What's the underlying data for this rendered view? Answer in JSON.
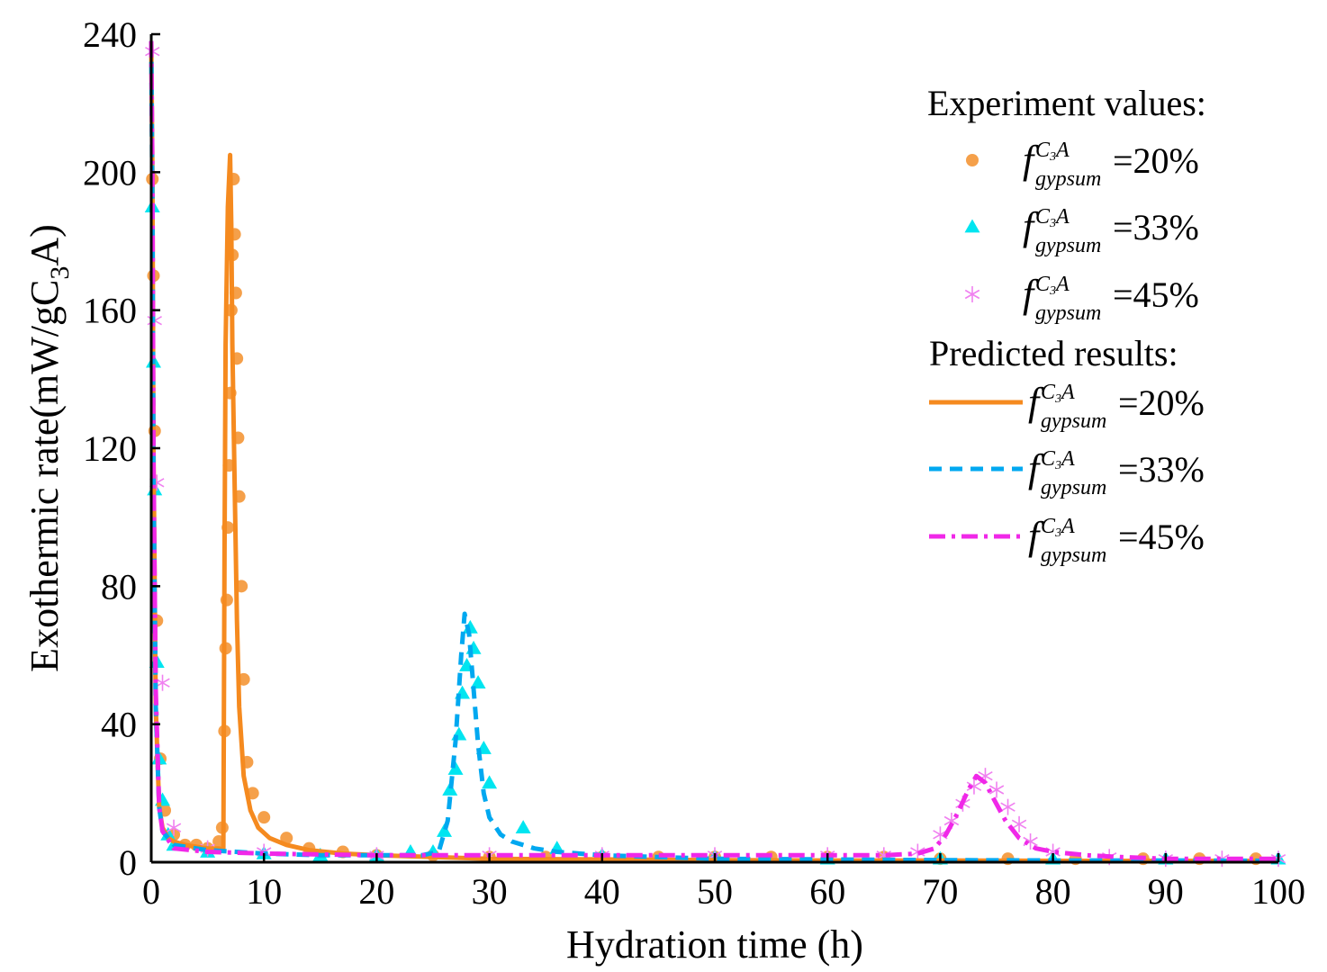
{
  "chart_data": {
    "type": "line",
    "xlabel": "Hydration time (h)",
    "ylabel": "Exothermic rate(mW/gC",
    "ylabel_sub": "3",
    "ylabel_end": "A)",
    "xlim": [
      0,
      100
    ],
    "ylim": [
      0,
      240
    ],
    "x_ticks": [
      0,
      10,
      20,
      30,
      40,
      50,
      60,
      70,
      80,
      90,
      100
    ],
    "y_ticks": [
      0,
      40,
      80,
      120,
      160,
      200,
      240
    ],
    "legend": {
      "experiment_title": "Experiment values:",
      "predicted_title": "Predicted results:",
      "symbol_main": "f",
      "symbol_sup": "C",
      "symbol_sup_sub": "3",
      "symbol_sup_end": "A",
      "symbol_sub": "gypsum",
      "position": "top-right"
    },
    "experiment": [
      {
        "name": "f(C3A, gypsum)=20%",
        "value_label": "=20%",
        "color": "#F5A04A",
        "marker": "circle",
        "x": [
          0.1,
          0.2,
          0.3,
          0.5,
          0.8,
          1.2,
          2,
          3,
          4,
          5,
          6,
          6.3,
          6.5,
          6.6,
          6.7,
          6.8,
          6.9,
          7.0,
          7.1,
          7.2,
          7.3,
          7.4,
          7.5,
          7.6,
          7.7,
          7.8,
          8.0,
          8.2,
          8.5,
          9,
          10,
          12,
          14,
          17,
          20,
          25,
          30,
          35,
          40,
          45,
          50,
          55,
          60,
          65,
          70,
          76,
          82,
          88,
          93,
          98
        ],
        "y": [
          198,
          170,
          125,
          70,
          30,
          15,
          8,
          5,
          5,
          4,
          6,
          10,
          38,
          62,
          76,
          97,
          115,
          136,
          160,
          176,
          198,
          182,
          165,
          146,
          123,
          106,
          80,
          53,
          29,
          20,
          13,
          7,
          4,
          3,
          2,
          2,
          1.5,
          1.5,
          1.5,
          1.5,
          1.5,
          1.5,
          1.5,
          1.5,
          1,
          1,
          1,
          1,
          1,
          1
        ]
      },
      {
        "name": "f(C3A, gypsum)=33%",
        "value_label": "=33%",
        "color": "#00E5F0",
        "marker": "triangle",
        "x": [
          0.1,
          0.2,
          0.3,
          0.5,
          0.7,
          1,
          1.5,
          2,
          5,
          10,
          15,
          20,
          23,
          25,
          26,
          26.5,
          27,
          27.3,
          27.6,
          28,
          28.3,
          28.6,
          29,
          29.5,
          30,
          33,
          36,
          40,
          50,
          60,
          70,
          80,
          90,
          100
        ],
        "y": [
          190,
          145,
          108,
          58,
          30,
          18,
          8,
          5,
          3,
          2.5,
          2,
          2,
          3,
          3,
          9,
          21,
          27,
          37,
          49,
          57,
          68,
          62,
          52,
          33,
          23,
          10,
          4,
          2,
          1.5,
          1,
          1,
          1,
          1,
          1
        ]
      },
      {
        "name": "f(C3A, gypsum)=45%",
        "value_label": "=45%",
        "color": "#F080F0",
        "marker": "asterisk",
        "x": [
          0.1,
          0.3,
          0.5,
          1,
          2,
          5,
          10,
          20,
          30,
          40,
          50,
          60,
          65,
          68,
          70,
          71,
          72,
          73,
          74,
          75,
          76,
          77,
          78,
          80,
          85,
          90,
          95,
          100
        ],
        "y": [
          235,
          157,
          110,
          52,
          10,
          4,
          3,
          2,
          2,
          2,
          2,
          2,
          2,
          3,
          8,
          12,
          17,
          22,
          25,
          21,
          16,
          11,
          6,
          3,
          1.5,
          1,
          1,
          1
        ]
      }
    ],
    "predicted": [
      {
        "name": "f(C3A, gypsum)=20%",
        "value_label": "=20%",
        "color": "#F58A1F",
        "dash": "solid",
        "x": [
          0,
          0.1,
          0.2,
          0.4,
          0.7,
          1,
          1.5,
          2,
          3,
          4,
          5,
          6,
          6.4,
          6.5,
          6.6,
          6.8,
          7.0,
          7.1,
          7.2,
          7.4,
          7.6,
          7.8,
          8.2,
          8.8,
          9.5,
          10.5,
          12,
          14,
          17,
          20,
          25,
          30,
          40,
          50,
          60,
          70,
          80,
          90,
          100
        ],
        "y": [
          238,
          200,
          120,
          45,
          16,
          10,
          7,
          6,
          5,
          4.5,
          4,
          4,
          3.5,
          90,
          150,
          190,
          205,
          185,
          150,
          110,
          70,
          45,
          25,
          15,
          10,
          7,
          5,
          3.5,
          2.5,
          2,
          1.5,
          1,
          0.8,
          0.6,
          0.5,
          0.5,
          0.4,
          0.4,
          0.4
        ]
      },
      {
        "name": "f(C3A, gypsum)=33%",
        "value_label": "=33%",
        "color": "#00A8F0",
        "dash": "dashed",
        "x": [
          0,
          0.1,
          0.2,
          0.4,
          0.7,
          1,
          2,
          5,
          10,
          15,
          20,
          24,
          25.5,
          26.3,
          27,
          27.5,
          27.8,
          28.2,
          28.6,
          29,
          29.5,
          30,
          31,
          32,
          34,
          36,
          40,
          50,
          60,
          70,
          80,
          90,
          100
        ],
        "y": [
          238,
          190,
          110,
          45,
          16,
          9,
          5,
          3.5,
          2.5,
          2,
          2,
          2,
          3,
          12,
          35,
          60,
          72,
          66,
          50,
          34,
          20,
          13,
          8,
          6,
          4,
          3,
          2,
          1,
          0.8,
          0.6,
          0.5,
          0.5,
          0.4
        ]
      },
      {
        "name": "f(C3A, gypsum)=45%",
        "value_label": "=45%",
        "color": "#F028E8",
        "dash": "dashdot",
        "x": [
          0,
          0.1,
          0.2,
          0.4,
          0.7,
          1,
          2,
          5,
          10,
          20,
          30,
          40,
          50,
          60,
          65,
          68,
          69.5,
          70.5,
          71.5,
          72.5,
          73.2,
          74,
          74.8,
          75.8,
          77,
          78.5,
          80,
          83,
          86,
          90,
          95,
          100
        ],
        "y": [
          238,
          200,
          115,
          50,
          16,
          9,
          4,
          3,
          2.5,
          2,
          2,
          2,
          2,
          2,
          2,
          2.5,
          4,
          8,
          14,
          21,
          25,
          23,
          18,
          12,
          7,
          4,
          3,
          2,
          1.5,
          1,
          1,
          1
        ]
      }
    ]
  }
}
